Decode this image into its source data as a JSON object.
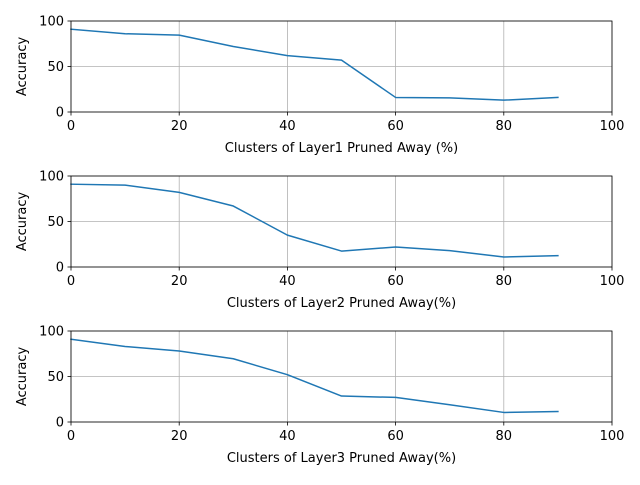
{
  "chart_data": [
    {
      "type": "line",
      "xlabel": "Clusters of Layer1 Pruned Away (%)",
      "ylabel": "Accuracy",
      "xlim": [
        0,
        100
      ],
      "ylim": [
        0,
        100
      ],
      "xticks": [
        0,
        20,
        40,
        60,
        80,
        100
      ],
      "yticks": [
        0,
        50,
        100
      ],
      "grid": true,
      "series": [
        {
          "x": [
            0,
            10,
            20,
            30,
            40,
            50,
            60,
            70,
            80,
            90
          ],
          "values": [
            91,
            86,
            84.5,
            72,
            62,
            57,
            16,
            15.5,
            13,
            16
          ]
        }
      ]
    },
    {
      "type": "line",
      "xlabel": "Clusters of Layer2 Pruned Away(%)",
      "ylabel": "Accuracy",
      "xlim": [
        0,
        100
      ],
      "ylim": [
        0,
        100
      ],
      "xticks": [
        0,
        20,
        40,
        60,
        80,
        100
      ],
      "yticks": [
        0,
        50,
        100
      ],
      "grid": true,
      "series": [
        {
          "x": [
            0,
            10,
            20,
            30,
            40,
            50,
            60,
            70,
            80,
            90
          ],
          "values": [
            91,
            90,
            82,
            67,
            35,
            17.5,
            22,
            18,
            11,
            12.5
          ]
        }
      ]
    },
    {
      "type": "line",
      "xlabel": "Clusters of Layer3 Pruned Away(%)",
      "ylabel": "Accuracy",
      "xlim": [
        0,
        100
      ],
      "ylim": [
        0,
        100
      ],
      "xticks": [
        0,
        20,
        40,
        60,
        80,
        100
      ],
      "yticks": [
        0,
        50,
        100
      ],
      "grid": true,
      "series": [
        {
          "x": [
            0,
            10,
            20,
            30,
            40,
            50,
            60,
            70,
            80,
            90
          ],
          "values": [
            91,
            83,
            78,
            69.5,
            52,
            28.5,
            27,
            19,
            10.5,
            11.5
          ]
        }
      ]
    }
  ],
  "colors": {
    "line": "#1f77b4",
    "grid": "#b0b0b0",
    "axis": "#000000"
  }
}
